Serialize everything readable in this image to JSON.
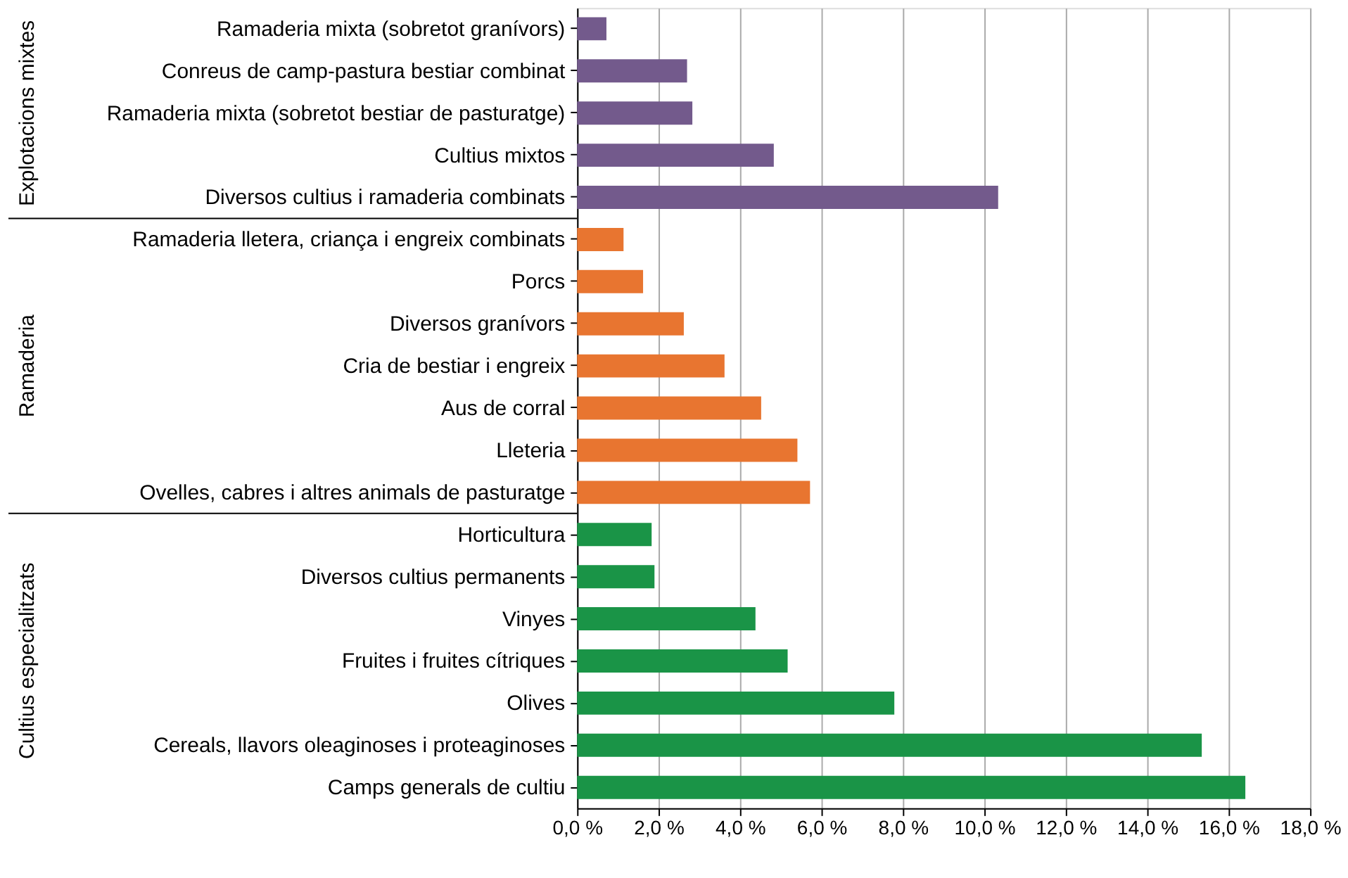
{
  "chart_data": {
    "type": "bar",
    "orientation": "horizontal",
    "categories": [
      "Ramaderia mixta (sobretot granívors)",
      "Conreus de camp-pastura bestiar combinat",
      "Ramaderia mixta (sobretot bestiar de pasturatge)",
      "Cultius mixtos",
      "Diversos cultius i ramaderia combinats",
      "Ramaderia lletera, criança i engreix combinats",
      "Porcs",
      "Diversos granívors",
      "Cria de bestiar i engreix",
      "Aus de corral",
      "Lleteria",
      "Ovelles, cabres i altres animals de pasturatge",
      "Horticultura",
      "Diversos cultius permanents",
      "Vinyes",
      "Fruites i fruites cítriques",
      "Olives",
      "Cereals, llavors oleaginoses i proteaginoses",
      "Camps generals de cultiu"
    ],
    "values": [
      0.72,
      2.7,
      2.83,
      4.83,
      10.34,
      1.14,
      1.62,
      2.62,
      3.62,
      4.52,
      5.41,
      5.72,
      1.83,
      1.9,
      4.38,
      5.17,
      7.79,
      15.34,
      16.41
    ],
    "colors": [
      "#735a8c",
      "#735a8c",
      "#735a8c",
      "#735a8c",
      "#735a8c",
      "#e87530",
      "#e87530",
      "#e87530",
      "#e87530",
      "#e87530",
      "#e87530",
      "#e87530",
      "#1a9447",
      "#1a9447",
      "#1a9447",
      "#1a9447",
      "#1a9447",
      "#1a9447",
      "#1a9447"
    ],
    "xlim": [
      0,
      18
    ],
    "xticks": [
      {
        "value": 0,
        "label": "0,0 %"
      },
      {
        "value": 2,
        "label": "2,0 %"
      },
      {
        "value": 4,
        "label": "4,0 %"
      },
      {
        "value": 6,
        "label": "6,0 %"
      },
      {
        "value": 8,
        "label": "8,0 %"
      },
      {
        "value": 10,
        "label": "10,0 %"
      },
      {
        "value": 12,
        "label": "12,0 %"
      },
      {
        "value": 14,
        "label": "14,0 %"
      },
      {
        "value": 16,
        "label": "16,0 %"
      },
      {
        "value": 18,
        "label": "18,0 %"
      }
    ],
    "grid": "x",
    "annotations": [
      "Explotacions mixtes",
      "Ramaderia",
      "Cultius especialitzats"
    ]
  }
}
